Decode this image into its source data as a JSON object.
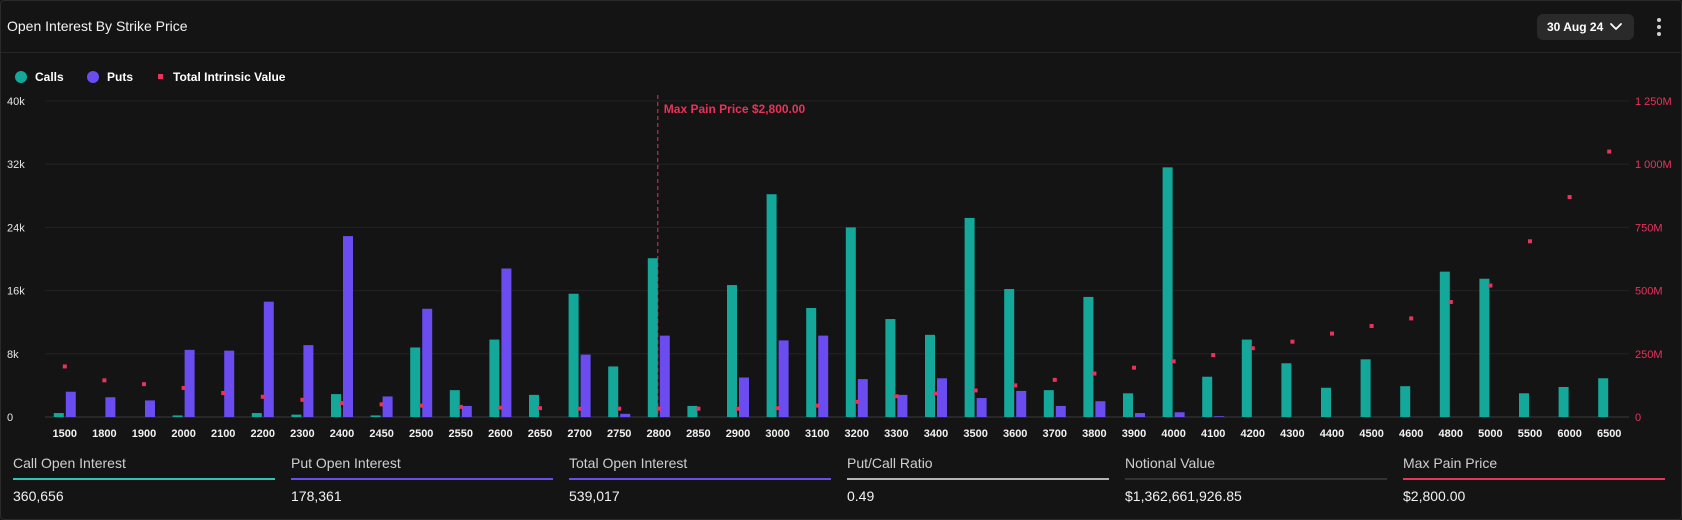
{
  "header": {
    "title": "Open Interest By Strike Price",
    "date_label": "30 Aug 24"
  },
  "legend": [
    {
      "key": "calls",
      "label": "Calls",
      "color": "#14a89b"
    },
    {
      "key": "puts",
      "label": "Puts",
      "color": "#6a4cf0"
    },
    {
      "key": "tiv",
      "label": "Total Intrinsic Value",
      "color": "#e8335a"
    }
  ],
  "stats": [
    {
      "label": "Call Open Interest",
      "value": "360,656",
      "color": "#2ec4b6"
    },
    {
      "label": "Put Open Interest",
      "value": "178,361",
      "color": "#6a4cf0"
    },
    {
      "label": "Total Open Interest",
      "value": "539,017",
      "color": "#6a4cf0"
    },
    {
      "label": "Put/Call Ratio",
      "value": "0.49",
      "color": "#b5b5b5"
    },
    {
      "label": "Notional Value",
      "value": "$1,362,661,926.85",
      "color": "#333333"
    },
    {
      "label": "Max Pain Price",
      "value": "$2,800.00",
      "color": "#e8335a"
    }
  ],
  "chart_data": {
    "type": "bar",
    "categories": [
      "1500",
      "1800",
      "1900",
      "2000",
      "2100",
      "2200",
      "2300",
      "2400",
      "2450",
      "2500",
      "2550",
      "2600",
      "2650",
      "2700",
      "2750",
      "2800",
      "2850",
      "2900",
      "3000",
      "3100",
      "3200",
      "3300",
      "3400",
      "3500",
      "3600",
      "3700",
      "3800",
      "3900",
      "4000",
      "4100",
      "4200",
      "4300",
      "4400",
      "4500",
      "4600",
      "4800",
      "5000",
      "5500",
      "6000",
      "6500"
    ],
    "series": [
      {
        "name": "Calls",
        "axis": "left",
        "color": "#14a89b",
        "values": [
          500,
          0,
          0,
          200,
          0,
          500,
          300,
          2900,
          200,
          8800,
          3400,
          9800,
          2800,
          15600,
          6400,
          20100,
          1400,
          16700,
          28200,
          13800,
          24000,
          12400,
          10400,
          25200,
          16200,
          3400,
          15200,
          3000,
          31600,
          5100,
          9800,
          6800,
          3700,
          7300,
          3900,
          18400,
          17500,
          3000,
          3800,
          4900
        ]
      },
      {
        "name": "Puts",
        "axis": "left",
        "color": "#6a4cf0",
        "values": [
          3200,
          2500,
          2100,
          8500,
          8400,
          14600,
          9100,
          22900,
          2600,
          13700,
          1400,
          18800,
          0,
          7900,
          400,
          10300,
          0,
          5000,
          9700,
          10300,
          4800,
          2800,
          4900,
          2400,
          3300,
          1400,
          2000,
          500,
          600,
          100,
          0,
          0,
          0,
          0,
          0,
          0,
          0,
          0,
          0,
          0
        ]
      },
      {
        "name": "Total Intrinsic Value",
        "axis": "right",
        "color": "#e8335a",
        "values": [
          200,
          145,
          130,
          115,
          95,
          80,
          68,
          55,
          50,
          45,
          40,
          37,
          35,
          33,
          33,
          33,
          33,
          33,
          35,
          45,
          60,
          82,
          93,
          105,
          125,
          147,
          172,
          195,
          220,
          245,
          272,
          298,
          330,
          360,
          390,
          455,
          520,
          695,
          870,
          1050
        ]
      }
    ],
    "y_left": {
      "ticks": [
        0,
        8000,
        16000,
        24000,
        32000,
        40000
      ],
      "tick_labels": [
        "0",
        "8k",
        "16k",
        "24k",
        "32k",
        "40k"
      ],
      "ylim": [
        0,
        40000
      ]
    },
    "y_right": {
      "ticks": [
        0,
        250,
        500,
        750,
        1000,
        1250
      ],
      "tick_labels": [
        "0",
        "250M",
        "500M",
        "750M",
        "1 000M",
        "1 250M"
      ],
      "ylim": [
        0,
        1250
      ],
      "color": "#e8335a"
    },
    "annotation": {
      "category": "2800",
      "label": "Max Pain Price $2,800.00",
      "color": "#e8335a"
    },
    "grid": true,
    "legend_position": "top-left"
  }
}
